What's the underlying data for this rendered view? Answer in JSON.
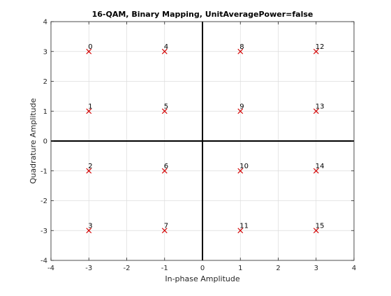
{
  "chart_data": {
    "type": "scatter",
    "title": "16-QAM, Binary Mapping, UnitAveragePower=false",
    "xlabel": "In-phase Amplitude",
    "ylabel": "Quadrature Amplitude",
    "xlim": [
      -4,
      4
    ],
    "ylim": [
      -4,
      4
    ],
    "xticks": [
      "-4",
      "-3",
      "-2",
      "-1",
      "0",
      "1",
      "2",
      "3",
      "4"
    ],
    "yticks": [
      "-4",
      "-3",
      "-2",
      "-1",
      "0",
      "1",
      "2",
      "3",
      "4"
    ],
    "grid": true,
    "marker": "x",
    "marker_color": "#d40000",
    "points": [
      {
        "x": -3,
        "y": 3,
        "label": "0"
      },
      {
        "x": -3,
        "y": 1,
        "label": "1"
      },
      {
        "x": -3,
        "y": -1,
        "label": "2"
      },
      {
        "x": -3,
        "y": -3,
        "label": "3"
      },
      {
        "x": -1,
        "y": 3,
        "label": "4"
      },
      {
        "x": -1,
        "y": 1,
        "label": "5"
      },
      {
        "x": -1,
        "y": -1,
        "label": "6"
      },
      {
        "x": -1,
        "y": -3,
        "label": "7"
      },
      {
        "x": 1,
        "y": 3,
        "label": "8"
      },
      {
        "x": 1,
        "y": 1,
        "label": "9"
      },
      {
        "x": 1,
        "y": -1,
        "label": "10"
      },
      {
        "x": 1,
        "y": -3,
        "label": "11"
      },
      {
        "x": 3,
        "y": 3,
        "label": "12"
      },
      {
        "x": 3,
        "y": 1,
        "label": "13"
      },
      {
        "x": 3,
        "y": -1,
        "label": "14"
      },
      {
        "x": 3,
        "y": -3,
        "label": "15"
      }
    ]
  }
}
